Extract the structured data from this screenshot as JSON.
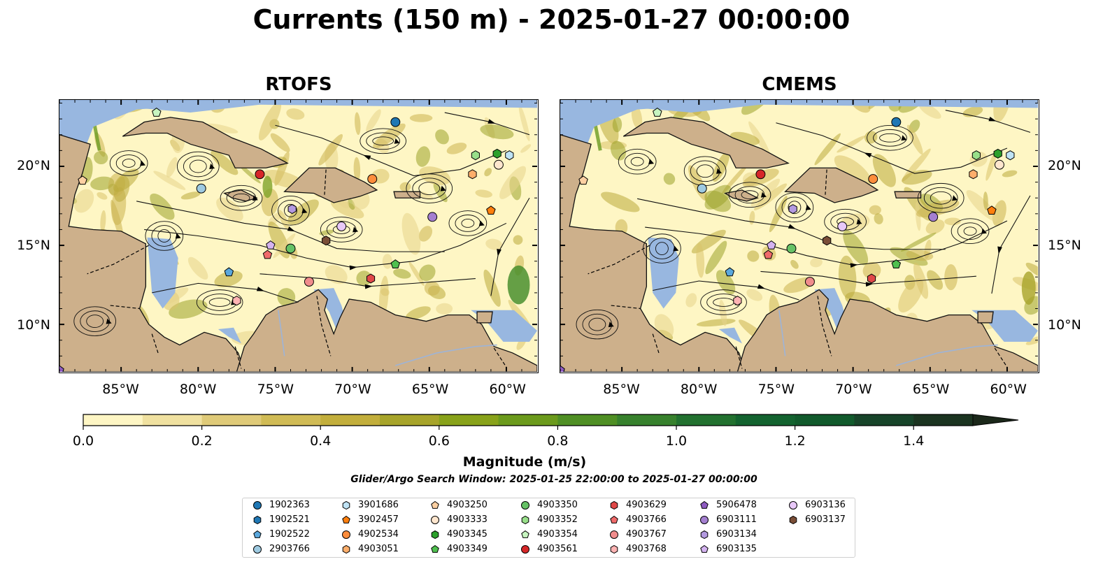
{
  "title": "Currents (150 m) - 2025-01-27 00:00:00",
  "panels": [
    {
      "name": "RTOFS"
    },
    {
      "name": "CMEMS"
    }
  ],
  "axes": {
    "lon_ticks": [
      "85°W",
      "80°W",
      "75°W",
      "70°W",
      "65°W",
      "60°W"
    ],
    "lat_ticks": [
      "20°N",
      "15°N",
      "10°N"
    ],
    "lon_range": [
      -89.0,
      -58.0
    ],
    "lat_range": [
      7.0,
      24.2
    ]
  },
  "colorbar": {
    "label": "Magnitude (m/s)",
    "ticks": [
      "0.0",
      "0.2",
      "0.4",
      "0.6",
      "0.8",
      "1.0",
      "1.2",
      "1.4"
    ],
    "range": [
      0.0,
      1.5
    ],
    "extend": "max",
    "colors": [
      "#fef6c4",
      "#f0e1a0",
      "#dfca78",
      "#d0bb55",
      "#c2ae3b",
      "#a7a42a",
      "#88a21a",
      "#6b9a1c",
      "#4f8f24",
      "#37812d",
      "#22712f",
      "#13632f",
      "#115a2c",
      "#174429",
      "#1b3420",
      "#1b281a"
    ]
  },
  "window_text": "Glider/Argo Search Window: 2025-01-25 22:00:00 to 2025-01-27 00:00:00",
  "colors": {
    "land": "#cdb08b",
    "shallow": "#98b7e0",
    "current_low": "#fef6c4"
  },
  "platforms": [
    {
      "id": "1902363",
      "color": "#1f77b4",
      "marker": "circle",
      "lon": -67.2,
      "lat": 22.8
    },
    {
      "id": "1902521",
      "color": "#1f77b4",
      "marker": "hexagon",
      "lon": -89.0,
      "lat": 7.0
    },
    {
      "id": "1902522",
      "color": "#5ba8dd",
      "marker": "pentagon",
      "lon": -78.0,
      "lat": 13.3
    },
    {
      "id": "2903766",
      "color": "#9ecae1",
      "marker": "circle",
      "lon": -79.8,
      "lat": 18.6
    },
    {
      "id": "3901686",
      "color": "#bfe3f5",
      "marker": "hexagon",
      "lon": -59.8,
      "lat": 20.7
    },
    {
      "id": "3902457",
      "color": "#ff7f0e",
      "marker": "pentagon",
      "lon": -61.0,
      "lat": 17.2
    },
    {
      "id": "4902534",
      "color": "#fd8d3c",
      "marker": "circle",
      "lon": -68.7,
      "lat": 19.2
    },
    {
      "id": "4903051",
      "color": "#fdae6b",
      "marker": "hexagon",
      "lon": -62.2,
      "lat": 19.5
    },
    {
      "id": "4903250",
      "color": "#fdd0a2",
      "marker": "pentagon",
      "lon": -87.5,
      "lat": 19.1
    },
    {
      "id": "4903333",
      "color": "#fee6ce",
      "marker": "circle",
      "lon": -60.5,
      "lat": 20.1
    },
    {
      "id": "4903345",
      "color": "#2ca02c",
      "marker": "hexagon",
      "lon": -60.6,
      "lat": 20.8
    },
    {
      "id": "4903349",
      "color": "#4fc04f",
      "marker": "pentagon",
      "lon": -67.2,
      "lat": 13.8
    },
    {
      "id": "4903350",
      "color": "#66c266",
      "marker": "circle",
      "lon": -74.0,
      "lat": 14.8
    },
    {
      "id": "4903352",
      "color": "#98df8a",
      "marker": "hexagon",
      "lon": -62.0,
      "lat": 20.7
    },
    {
      "id": "4903354",
      "color": "#c7f5c0",
      "marker": "pentagon",
      "lon": -82.7,
      "lat": 23.4
    },
    {
      "id": "4903561",
      "color": "#d62728",
      "marker": "circle",
      "lon": -76.0,
      "lat": 19.5
    },
    {
      "id": "4903629",
      "color": "#e04848",
      "marker": "hexagon",
      "lon": -68.8,
      "lat": 12.9
    },
    {
      "id": "4903766",
      "color": "#f06a6a",
      "marker": "pentagon",
      "lon": -75.5,
      "lat": 14.4
    },
    {
      "id": "4903767",
      "color": "#f08c8c",
      "marker": "circle",
      "lon": -72.8,
      "lat": 12.7
    },
    {
      "id": "4903768",
      "color": "#ffb3b3",
      "marker": "hexagon",
      "lon": -77.5,
      "lat": 11.5
    },
    {
      "id": "5906478",
      "color": "#8e5bc0",
      "marker": "pentagon",
      "lon": -89.0,
      "lat": 7.1
    },
    {
      "id": "6903111",
      "color": "#a47fd0",
      "marker": "circle",
      "lon": -64.8,
      "lat": 16.8
    },
    {
      "id": "6903134",
      "color": "#b39ae0",
      "marker": "hexagon",
      "lon": -73.9,
      "lat": 17.3
    },
    {
      "id": "6903135",
      "color": "#d4b3f0",
      "marker": "pentagon",
      "lon": -75.3,
      "lat": 15.0
    },
    {
      "id": "6903136",
      "color": "#e8c8f8",
      "marker": "circle",
      "lon": -70.7,
      "lat": 16.2
    },
    {
      "id": "6903137",
      "color": "#7a4e37",
      "marker": "hexagon",
      "lon": -71.7,
      "lat": 15.3
    }
  ]
}
